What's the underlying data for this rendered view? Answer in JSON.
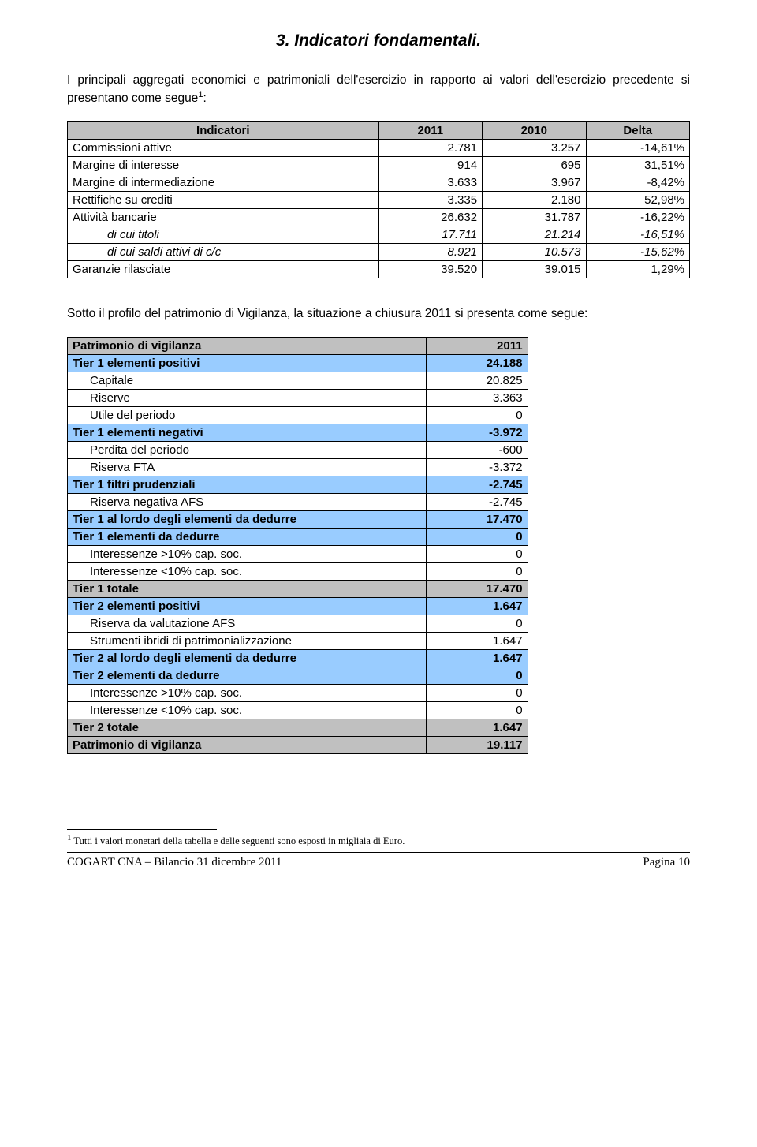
{
  "title": "3. Indicatori fondamentali.",
  "intro_a": "I principali aggregati economici e patrimoniali dell'esercizio in rapporto ai valori dell'esercizio precedente si presentano come segue",
  "intro_b": ":",
  "table1": {
    "headers": {
      "c0": "Indicatori",
      "c1": "2011",
      "c2": "2010",
      "c3": "Delta"
    },
    "rows": [
      {
        "label": "Commissioni attive",
        "v1": "2.781",
        "v2": "3.257",
        "d": "-14,61%",
        "indent": false
      },
      {
        "label": "Margine di interesse",
        "v1": "914",
        "v2": "695",
        "d": "31,51%",
        "indent": false
      },
      {
        "label": "Margine di intermediazione",
        "v1": "3.633",
        "v2": "3.967",
        "d": "-8,42%",
        "indent": false
      },
      {
        "label": "Rettifiche su crediti",
        "v1": "3.335",
        "v2": "2.180",
        "d": "52,98%",
        "indent": false
      },
      {
        "label": "Attività bancarie",
        "v1": "26.632",
        "v2": "31.787",
        "d": "-16,22%",
        "indent": false
      },
      {
        "label": "di cui titoli",
        "v1": "17.711",
        "v2": "21.214",
        "d": "-16,51%",
        "indent": true
      },
      {
        "label": "di cui saldi attivi di c/c",
        "v1": "8.921",
        "v2": "10.573",
        "d": "-15,62%",
        "indent": true
      },
      {
        "label": "Garanzie rilasciate",
        "v1": "39.520",
        "v2": "39.015",
        "d": "1,29%",
        "indent": false
      }
    ]
  },
  "mid_text": "Sotto il profilo del patrimonio di Vigilanza, la situazione a chiusura 2011 si presenta come segue:",
  "table2": {
    "head": {
      "l": "Patrimonio di vigilanza",
      "r": "2011"
    },
    "rows": [
      {
        "type": "band",
        "label": "Tier 1 elementi positivi",
        "val": "24.188"
      },
      {
        "type": "plain",
        "label": "Capitale",
        "val": "20.825",
        "indent": true
      },
      {
        "type": "plain",
        "label": "Riserve",
        "val": "3.363",
        "indent": true
      },
      {
        "type": "plain",
        "label": "Utile del periodo",
        "val": "0",
        "indent": true
      },
      {
        "type": "band",
        "label": "Tier 1 elementi negativi",
        "val": "-3.972"
      },
      {
        "type": "plain",
        "label": "Perdita del periodo",
        "val": "-600",
        "indent": true
      },
      {
        "type": "plain",
        "label": "Riserva FTA",
        "val": "-3.372",
        "indent": true
      },
      {
        "type": "band",
        "label": "Tier 1 filtri prudenziali",
        "val": "-2.745"
      },
      {
        "type": "plain",
        "label": "Riserva negativa AFS",
        "val": "-2.745",
        "indent": true
      },
      {
        "type": "band",
        "label": "Tier 1 al lordo degli elementi da dedurre",
        "val": "17.470"
      },
      {
        "type": "band",
        "label": "Tier 1 elementi da dedurre",
        "val": "0"
      },
      {
        "type": "plain",
        "label": "Interessenze >10% cap. soc.",
        "val": "0",
        "indent": true
      },
      {
        "type": "plain",
        "label": "Interessenze <10% cap. soc.",
        "val": "0",
        "indent": true
      },
      {
        "type": "gray",
        "label": "Tier 1 totale",
        "val": "17.470"
      },
      {
        "type": "band",
        "label": "Tier 2 elementi positivi",
        "val": "1.647"
      },
      {
        "type": "plain",
        "label": "Riserva da valutazione AFS",
        "val": "0",
        "indent": true
      },
      {
        "type": "plain",
        "label": "Strumenti ibridi di patrimonializzazione",
        "val": "1.647",
        "indent": true
      },
      {
        "type": "band",
        "label": "Tier 2 al lordo degli elementi da dedurre",
        "val": "1.647"
      },
      {
        "type": "band",
        "label": "Tier 2 elementi da dedurre",
        "val": "0"
      },
      {
        "type": "plain",
        "label": "Interessenze >10% cap. soc.",
        "val": "0",
        "indent": true
      },
      {
        "type": "plain",
        "label": "Interessenze <10% cap. soc.",
        "val": "0",
        "indent": true
      },
      {
        "type": "gray",
        "label": "Tier 2 totale",
        "val": "1.647"
      },
      {
        "type": "gray",
        "label": "Patrimonio di vigilanza",
        "val": "19.117"
      }
    ]
  },
  "footnote_marker": "1",
  "footnote_text": " Tutti i valori monetari della tabella e delle seguenti sono esposti in migliaia di Euro.",
  "footer_left": "COGART CNA – Bilancio 31 dicembre 2011",
  "footer_right": "Pagina 10"
}
